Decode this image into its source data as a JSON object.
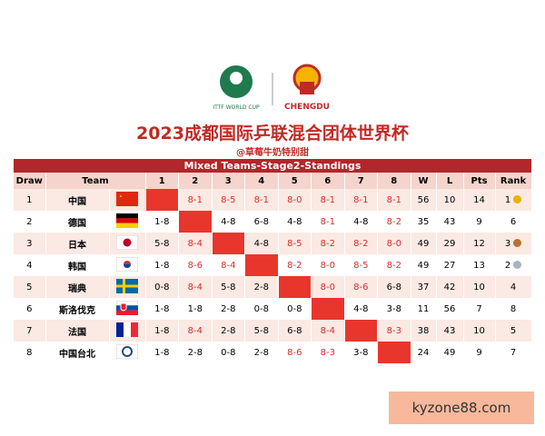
{
  "header": {
    "logo_left": "ITTF WORLD CUP",
    "logo_right": "CHENGDU",
    "title": "2023成都国际乒联混合团体世界杯",
    "subtitle": "@草莓牛奶特别甜"
  },
  "table": {
    "header_bar": "Mixed Teams-Stage2-Standings",
    "columns": [
      "Draw",
      "Team",
      "1",
      "2",
      "3",
      "4",
      "5",
      "6",
      "7",
      "8",
      "W",
      "L",
      "Pts",
      "Rank"
    ],
    "rows": [
      [
        1,
        "中国",
        null,
        "8-1",
        "8-5",
        "8-1",
        "8-0",
        "8-1",
        "8-1",
        "8-1",
        56,
        10,
        14,
        1
      ],
      [
        2,
        "德国",
        "1-8",
        null,
        "4-8",
        "6-8",
        "4-8",
        "8-1",
        "4-8",
        "8-2",
        35,
        43,
        9,
        6
      ],
      [
        3,
        "日本",
        "5-8",
        "8-4",
        null,
        "4-8",
        "8-5",
        "8-2",
        "8-2",
        "8-0",
        49,
        29,
        12,
        3
      ],
      [
        4,
        "韩国",
        "1-8",
        "8-6",
        "8-4",
        null,
        "8-2",
        "8-0",
        "8-5",
        "8-2",
        49,
        27,
        13,
        2
      ],
      [
        5,
        "瑞典",
        "0-8",
        "8-4",
        "5-8",
        "2-8",
        null,
        "8-0",
        "8-6",
        "6-8",
        37,
        42,
        10,
        4
      ],
      [
        6,
        "斯洛伐克",
        "1-8",
        "1-8",
        "2-8",
        "0-8",
        "0-8",
        null,
        "4-8",
        "3-8",
        11,
        56,
        7,
        8
      ],
      [
        7,
        "法国",
        "1-8",
        "8-4",
        "2-8",
        "5-8",
        "6-8",
        "8-4",
        null,
        "8-3",
        38,
        43,
        10,
        5
      ],
      [
        8,
        "中国台北",
        "1-8",
        "2-8",
        "0-8",
        "2-8",
        "8-6",
        "8-3",
        "3-8",
        null,
        24,
        49,
        9,
        7
      ]
    ]
  },
  "watermark": "kyzone88.com"
}
